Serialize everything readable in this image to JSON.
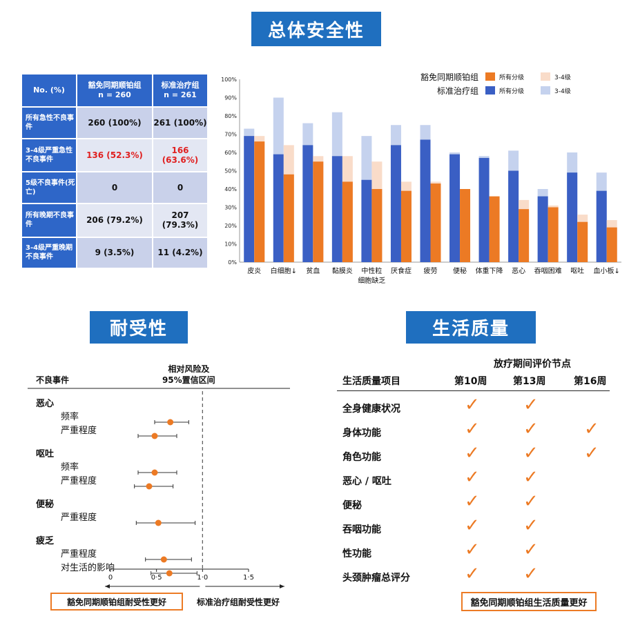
{
  "banners": {
    "safety": "总体安全性",
    "tolerance": "耐受性",
    "qol": "生活质量"
  },
  "safety_table": {
    "headers": [
      "No. (%)",
      "豁免同期顺铂组\nn = 260",
      "标准治疗组\nn = 261"
    ],
    "rows": [
      {
        "label": "所有急性不良事件",
        "a": "260 (100%)",
        "b": "261 (100%)",
        "red": false
      },
      {
        "label": "3-4级严重急性不良事件",
        "a": "136 (52.3%)",
        "b": "166 (63.6%)",
        "red": true
      },
      {
        "label": "5级不良事件(死亡)",
        "a": "0",
        "b": "0",
        "red": false
      },
      {
        "label": "所有晚期不良事件",
        "a": "206 (79.2%)",
        "b": "207 (79.3%)",
        "red": false
      },
      {
        "label": "3-4级严重晚期不良事件",
        "a": "9 (3.5%)",
        "b": "11 (4.2%)",
        "red": false
      }
    ]
  },
  "legend": {
    "group1": "豁免同期顺铂组",
    "group2": "标准治疗组",
    "all_grades": "所有分级",
    "grade34": "3-4级"
  },
  "colors": {
    "banner": "#1f6fbf",
    "blue_all": "#3a5fc4",
    "blue_34": "#c5d2ee",
    "orange_all": "#ec7a24",
    "orange_34": "#f9dcc9",
    "table_header": "#2e66c8"
  },
  "chart_data": [
    {
      "type": "bar",
      "categories": [
        "皮炎",
        "白细胞↓",
        "贫血",
        "黏膜炎",
        "中性粒\n细胞缺乏",
        "厌食症",
        "疲劳",
        "便秘",
        "体重下降",
        "恶心",
        "吞咽困难",
        "呕吐",
        "血小板↓"
      ],
      "y_ticks": [
        "0%",
        "10%",
        "20%",
        "30%",
        "40%",
        "50%",
        "60%",
        "70%",
        "80%",
        "90%",
        "100%"
      ],
      "ylim": [
        0,
        100
      ],
      "series": [
        {
          "name": "标准治疗组 3-4级",
          "values": [
            73,
            90,
            76,
            82,
            69,
            75,
            75,
            60,
            58,
            61,
            40,
            60,
            49
          ]
        },
        {
          "name": "标准治疗组 所有分级",
          "values": [
            69,
            59,
            64,
            58,
            45,
            64,
            67,
            59,
            57,
            50,
            36,
            49,
            39
          ]
        },
        {
          "name": "豁免同期顺铂组 3-4级",
          "values": [
            69,
            64,
            58,
            58,
            55,
            44,
            44,
            0,
            0,
            34,
            31,
            26,
            23
          ]
        },
        {
          "name": "豁免同期顺铂组 所有分级",
          "values": [
            66,
            48,
            55,
            44,
            40,
            39,
            43,
            40,
            36,
            29,
            30,
            22,
            19
          ]
        }
      ]
    },
    {
      "type": "scatter",
      "header_label": "不良事件",
      "header_ci": "相对风险及\n95%置信区间",
      "x_ticks": [
        "0",
        "0·5",
        "1·0",
        "1·5"
      ],
      "xlim": [
        0,
        1.5
      ],
      "reference_x": 1.0,
      "groups": [
        {
          "name": "恶心",
          "items": [
            {
              "label": "频率",
              "est": 0.65,
              "lo": 0.48,
              "hi": 0.85
            },
            {
              "label": "严重程度",
              "est": 0.48,
              "lo": 0.3,
              "hi": 0.72
            }
          ]
        },
        {
          "name": "呕吐",
          "items": [
            {
              "label": "频率",
              "est": 0.48,
              "lo": 0.3,
              "hi": 0.72
            },
            {
              "label": "严重程度",
              "est": 0.42,
              "lo": 0.26,
              "hi": 0.68
            }
          ]
        },
        {
          "name": "便秘",
          "items": [
            {
              "label": "严重程度",
              "est": 0.52,
              "lo": 0.28,
              "hi": 0.92
            }
          ]
        },
        {
          "name": "疲乏",
          "items": [
            {
              "label": "严重程度",
              "est": 0.58,
              "lo": 0.38,
              "hi": 0.88
            },
            {
              "label": "对生活的影响",
              "est": 0.64,
              "lo": 0.44,
              "hi": 0.94
            }
          ]
        }
      ],
      "left_label": "豁免同期顺铂组耐受性更好",
      "right_label": "标准治疗组耐受性更好"
    }
  ],
  "qol": {
    "header_top": "放疗期间评价节点",
    "col_item": "生活质量项目",
    "cols": [
      "第10周",
      "第13周",
      "第16周"
    ],
    "check": "✓",
    "rows": [
      {
        "label": "全身健康状况",
        "marks": [
          true,
          true,
          false
        ]
      },
      {
        "label": "身体功能",
        "marks": [
          true,
          true,
          true
        ]
      },
      {
        "label": "角色功能",
        "marks": [
          true,
          true,
          true
        ]
      },
      {
        "label": "恶心 / 呕吐",
        "marks": [
          true,
          true,
          false
        ]
      },
      {
        "label": "便秘",
        "marks": [
          true,
          true,
          false
        ]
      },
      {
        "label": "吞咽功能",
        "marks": [
          true,
          true,
          false
        ]
      },
      {
        "label": "性功能",
        "marks": [
          true,
          true,
          false
        ]
      },
      {
        "label": "头颈肿瘤总评分",
        "marks": [
          true,
          true,
          false
        ]
      }
    ],
    "footer": "豁免同期顺铂组生活质量更好"
  }
}
